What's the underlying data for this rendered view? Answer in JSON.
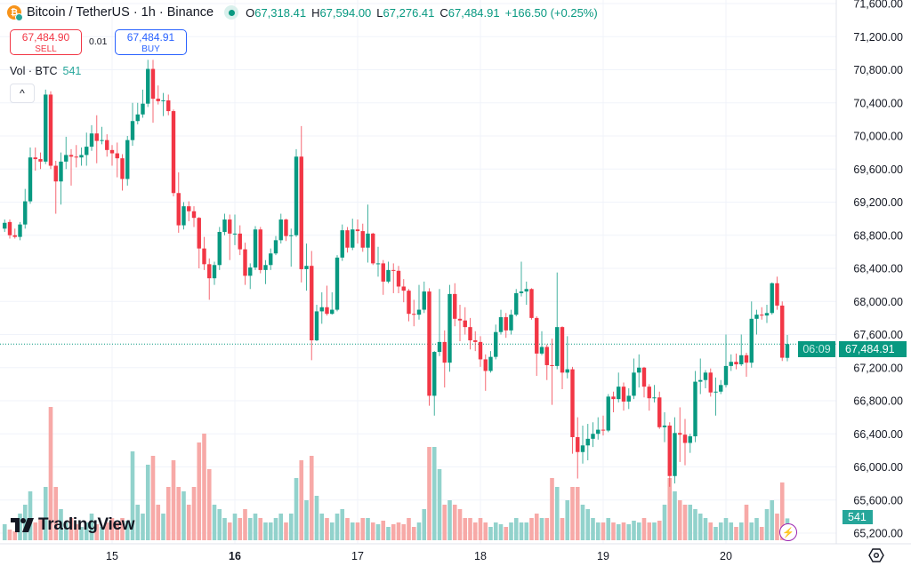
{
  "header": {
    "symbol_title": "Bitcoin / TetherUS · 1h · Binance",
    "logo_text": "₿",
    "ohlc": {
      "o_label": "O",
      "o": "67,318.41",
      "h_label": "H",
      "h": "67,594.00",
      "l_label": "L",
      "l": "67,276.41",
      "c_label": "C",
      "c": "67,484.91"
    },
    "change": "+166.50 (+0.25%)"
  },
  "trade": {
    "sell_price": "67,484.90",
    "sell_label": "SELL",
    "spread": "0.01",
    "buy_price": "67,484.91",
    "buy_label": "BUY"
  },
  "volume_legend": {
    "label": "Vol · BTC",
    "value": "541"
  },
  "collapse_icon": "^",
  "brand": "TradingView",
  "price_label": {
    "price": "67,484.91",
    "countdown": "06:09"
  },
  "volume_label": "541",
  "colors": {
    "up": "#089981",
    "down": "#f23645",
    "up_volume": "#92d2cc",
    "down_volume": "#f7a9a7",
    "grid": "#f0f3fa",
    "last_price": "#089981"
  },
  "icons": {
    "alert": "lightning-bolt-icon",
    "settings": "settings-hexagon-icon"
  },
  "chart_data": {
    "type": "candlestick",
    "title": "Bitcoin / TetherUS · 1h · Binance",
    "ylim": [
      65200,
      71600
    ],
    "grid": true,
    "y_ticks": [
      "71,600.00",
      "71,200.00",
      "70,800.00",
      "70,400.00",
      "70,000.00",
      "69,600.00",
      "69,200.00",
      "68,800.00",
      "68,400.00",
      "68,000.00",
      "67,600.00",
      "67,200.00",
      "66,800.00",
      "66,400.00",
      "66,000.00",
      "65,600.00",
      "65,200.00"
    ],
    "y_tick_values": [
      71600,
      71200,
      70800,
      70400,
      70000,
      69600,
      69200,
      68800,
      68400,
      68000,
      67600,
      67200,
      66800,
      66400,
      66000,
      65600,
      65200
    ],
    "x_ticks": [
      {
        "label": "15",
        "index": 21,
        "bold": false
      },
      {
        "label": "16",
        "index": 45,
        "bold": true
      },
      {
        "label": "17",
        "index": 69,
        "bold": false
      },
      {
        "label": "18",
        "index": 93,
        "bold": false
      },
      {
        "label": "19",
        "index": 117,
        "bold": false
      },
      {
        "label": "20",
        "index": 141,
        "bold": false
      }
    ],
    "last_price": 67484.91,
    "ohlc": [
      [
        68880,
        68990,
        68840,
        68950
      ],
      [
        68960,
        68990,
        68760,
        68800
      ],
      [
        68800,
        68880,
        68760,
        68780
      ],
      [
        68780,
        68960,
        68740,
        68930
      ],
      [
        68930,
        69360,
        68880,
        69210
      ],
      [
        69210,
        69860,
        69180,
        69740
      ],
      [
        69740,
        69860,
        69580,
        69720
      ],
      [
        69720,
        69800,
        69600,
        69690
      ],
      [
        69690,
        70560,
        69660,
        70500
      ],
      [
        70500,
        70540,
        69600,
        69640
      ],
      [
        69640,
        69700,
        69060,
        69450
      ],
      [
        69450,
        69800,
        69170,
        69690
      ],
      [
        69690,
        69990,
        69600,
        69770
      ],
      [
        69770,
        69840,
        69400,
        69750
      ],
      [
        69750,
        69890,
        69620,
        69740
      ],
      [
        69740,
        69860,
        69640,
        69770
      ],
      [
        69770,
        70040,
        69640,
        69870
      ],
      [
        69870,
        70130,
        69820,
        70030
      ],
      [
        70030,
        70250,
        69670,
        69940
      ],
      [
        69940,
        70110,
        69900,
        69950
      ],
      [
        69950,
        70020,
        69750,
        69830
      ],
      [
        69830,
        69890,
        69640,
        69790
      ],
      [
        69790,
        69920,
        69500,
        69730
      ],
      [
        69730,
        69780,
        69340,
        69480
      ],
      [
        69480,
        70000,
        69400,
        69950
      ],
      [
        69950,
        70400,
        69880,
        70180
      ],
      [
        70180,
        70400,
        70140,
        70260
      ],
      [
        70260,
        70560,
        70220,
        70390
      ],
      [
        70390,
        70920,
        70350,
        70810
      ],
      [
        70810,
        70920,
        70160,
        70450
      ],
      [
        70450,
        70610,
        70380,
        70420
      ],
      [
        70420,
        70520,
        70240,
        70430
      ],
      [
        70430,
        70500,
        70250,
        70300
      ],
      [
        70300,
        70320,
        69270,
        69310
      ],
      [
        69310,
        69560,
        68830,
        68920
      ],
      [
        68920,
        69200,
        68870,
        69150
      ],
      [
        69150,
        69210,
        68970,
        69090
      ],
      [
        69090,
        69150,
        68900,
        69010
      ],
      [
        69010,
        69020,
        68400,
        68640
      ],
      [
        68640,
        68780,
        68380,
        68450
      ],
      [
        68450,
        68520,
        68020,
        68280
      ],
      [
        68280,
        68480,
        68200,
        68440
      ],
      [
        68440,
        68900,
        68380,
        68840
      ],
      [
        68840,
        69060,
        68800,
        68990
      ],
      [
        68990,
        69050,
        68500,
        68820
      ],
      [
        68820,
        69050,
        68680,
        68820
      ],
      [
        68820,
        68920,
        68560,
        68630
      ],
      [
        68630,
        68710,
        68200,
        68310
      ],
      [
        68310,
        68460,
        68150,
        68410
      ],
      [
        68410,
        68910,
        68380,
        68870
      ],
      [
        68870,
        68900,
        68340,
        68380
      ],
      [
        68380,
        68500,
        68210,
        68440
      ],
      [
        68440,
        68640,
        68380,
        68580
      ],
      [
        68580,
        68790,
        68560,
        68740
      ],
      [
        68740,
        69060,
        68700,
        68990
      ],
      [
        68990,
        69000,
        68730,
        68790
      ],
      [
        68790,
        68880,
        68420,
        68800
      ],
      [
        68800,
        69840,
        68780,
        69750
      ],
      [
        69750,
        70120,
        68230,
        68390
      ],
      [
        68390,
        68700,
        68130,
        68430
      ],
      [
        68430,
        68610,
        67290,
        67530
      ],
      [
        67530,
        67960,
        67520,
        67880
      ],
      [
        67880,
        68110,
        67730,
        67930
      ],
      [
        67930,
        68190,
        67830,
        67850
      ],
      [
        67850,
        68110,
        67840,
        67900
      ],
      [
        67900,
        68560,
        67880,
        68530
      ],
      [
        68530,
        68930,
        68490,
        68860
      ],
      [
        68860,
        68900,
        68590,
        68650
      ],
      [
        68650,
        69000,
        68620,
        68870
      ],
      [
        68870,
        68990,
        68700,
        68850
      ],
      [
        68850,
        68940,
        68600,
        68650
      ],
      [
        68650,
        69170,
        68470,
        68820
      ],
      [
        68820,
        68830,
        68440,
        68460
      ],
      [
        68460,
        68660,
        68300,
        68460
      ],
      [
        68460,
        68500,
        68080,
        68240
      ],
      [
        68240,
        68480,
        68220,
        68380
      ],
      [
        68380,
        68460,
        68100,
        68370
      ],
      [
        68370,
        68430,
        68100,
        68180
      ],
      [
        68180,
        68270,
        67990,
        68130
      ],
      [
        68130,
        68150,
        67760,
        67850
      ],
      [
        67850,
        68020,
        67700,
        67840
      ],
      [
        67840,
        68200,
        67780,
        67900
      ],
      [
        67900,
        68240,
        67860,
        68120
      ],
      [
        68120,
        68160,
        66740,
        66860
      ],
      [
        66860,
        67400,
        66620,
        67390
      ],
      [
        67390,
        68150,
        67340,
        67510
      ],
      [
        67510,
        67650,
        66960,
        67260
      ],
      [
        67260,
        68200,
        67150,
        68090
      ],
      [
        68090,
        68220,
        67700,
        67790
      ],
      [
        67790,
        67960,
        67520,
        67770
      ],
      [
        67770,
        67930,
        67600,
        67690
      ],
      [
        67690,
        67800,
        67420,
        67530
      ],
      [
        67530,
        67640,
        67400,
        67510
      ],
      [
        67510,
        67580,
        67210,
        67300
      ],
      [
        67300,
        67360,
        66920,
        67160
      ],
      [
        67160,
        67400,
        67140,
        67330
      ],
      [
        67330,
        67720,
        67300,
        67630
      ],
      [
        67630,
        67900,
        67600,
        67810
      ],
      [
        67810,
        67860,
        67560,
        67650
      ],
      [
        67650,
        67900,
        67600,
        67840
      ],
      [
        67840,
        68150,
        67820,
        68100
      ],
      [
        68100,
        68480,
        68060,
        68120
      ],
      [
        68120,
        68240,
        67960,
        68150
      ],
      [
        68150,
        68160,
        67780,
        67800
      ],
      [
        67800,
        67820,
        67100,
        67370
      ],
      [
        67370,
        67640,
        67350,
        67450
      ],
      [
        67450,
        67480,
        67050,
        67230
      ],
      [
        67230,
        67550,
        66750,
        67220
      ],
      [
        67220,
        68350,
        67180,
        67690
      ],
      [
        67690,
        67700,
        66940,
        67140
      ],
      [
        67140,
        67580,
        67070,
        67180
      ],
      [
        67180,
        67210,
        66160,
        66360
      ],
      [
        66360,
        66600,
        65860,
        66180
      ],
      [
        66180,
        66500,
        66040,
        66260
      ],
      [
        66260,
        66520,
        66080,
        66340
      ],
      [
        66340,
        66540,
        66240,
        66400
      ],
      [
        66400,
        66600,
        66330,
        66450
      ],
      [
        66450,
        66620,
        66380,
        66440
      ],
      [
        66440,
        66880,
        66420,
        66850
      ],
      [
        66850,
        66910,
        66660,
        66820
      ],
      [
        66820,
        67140,
        66780,
        66970
      ],
      [
        66970,
        67020,
        66680,
        66790
      ],
      [
        66790,
        66950,
        66700,
        66860
      ],
      [
        66860,
        67310,
        66820,
        67140
      ],
      [
        67140,
        67360,
        66960,
        67200
      ],
      [
        67200,
        67210,
        66840,
        66970
      ],
      [
        66970,
        67000,
        66680,
        66830
      ],
      [
        66830,
        66990,
        66780,
        66840
      ],
      [
        66840,
        66910,
        66460,
        66480
      ],
      [
        66480,
        66660,
        66300,
        66500
      ],
      [
        66500,
        66540,
        65760,
        65890
      ],
      [
        65890,
        66600,
        65800,
        66410
      ],
      [
        66410,
        66720,
        66060,
        66390
      ],
      [
        66390,
        66580,
        66020,
        66290
      ],
      [
        66290,
        66400,
        66170,
        66370
      ],
      [
        66370,
        67160,
        66300,
        67030
      ],
      [
        67030,
        67310,
        66880,
        67050
      ],
      [
        67050,
        67170,
        66950,
        67140
      ],
      [
        67140,
        67190,
        66850,
        66900
      ],
      [
        66900,
        67080,
        66620,
        66910
      ],
      [
        66910,
        67050,
        66880,
        66990
      ],
      [
        66990,
        67600,
        66960,
        67220
      ],
      [
        67220,
        67360,
        67160,
        67270
      ],
      [
        67270,
        67370,
        67180,
        67240
      ],
      [
        67240,
        67600,
        67220,
        67350
      ],
      [
        67350,
        67380,
        67090,
        67260
      ],
      [
        67260,
        68000,
        67200,
        67790
      ],
      [
        67790,
        67900,
        67600,
        67840
      ],
      [
        67840,
        67930,
        67780,
        67830
      ],
      [
        67830,
        67960,
        67740,
        67860
      ],
      [
        67860,
        68230,
        67840,
        68220
      ],
      [
        68220,
        68300,
        67900,
        67950
      ],
      [
        67950,
        68000,
        67280,
        67320
      ],
      [
        67318.41,
        67594.0,
        67276.41,
        67484.91
      ]
    ],
    "volume": [
      396,
      264,
      220,
      660,
      880,
      1210,
      440,
      550,
      1320,
      3300,
      1320,
      770,
      440,
      550,
      396,
      330,
      440,
      660,
      396,
      330,
      440,
      550,
      440,
      550,
      484,
      2200,
      880,
      660,
      1870,
      2090,
      880,
      660,
      1320,
      1980,
      1320,
      1210,
      880,
      1320,
      2420,
      2640,
      1760,
      880,
      770,
      550,
      440,
      660,
      550,
      770,
      550,
      660,
      550,
      440,
      440,
      550,
      660,
      440,
      660,
      1540,
      1980,
      990,
      2090,
      1100,
      660,
      550,
      440,
      660,
      770,
      550,
      440,
      440,
      550,
      550,
      440,
      396,
      484,
      330,
      396,
      440,
      396,
      550,
      330,
      440,
      770,
      2310,
      2310,
      1760,
      880,
      990,
      880,
      770,
      550,
      550,
      440,
      550,
      440,
      330,
      440,
      396,
      330,
      440,
      550,
      440,
      440,
      550,
      660,
      550,
      550,
      1540,
      1320,
      550,
      990,
      1320,
      1320,
      880,
      770,
      550,
      440,
      440,
      550,
      440,
      396,
      440,
      396,
      484,
      440,
      550,
      440,
      440,
      484,
      880,
      1540,
      1210,
      990,
      880,
      880,
      770,
      660,
      550,
      440,
      330,
      440,
      550,
      440,
      330,
      440,
      880,
      440,
      550,
      330,
      770,
      990,
      660,
      1430,
      541
    ]
  }
}
